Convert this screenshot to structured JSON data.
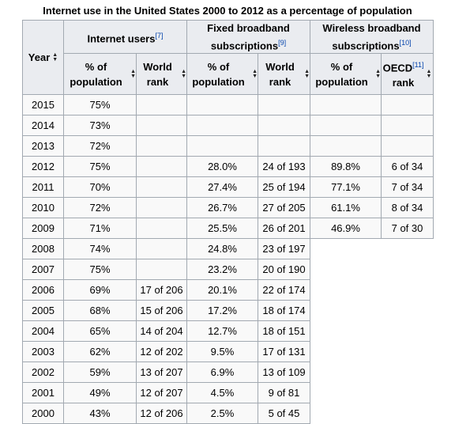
{
  "caption": "Internet use in the United States 2000 to 2012 as a percentage of population",
  "headers": {
    "year": "Year",
    "internet_users": "Internet users",
    "internet_users_ref": "[7]",
    "fixed_broadband": "Fixed broadband subscriptions",
    "fixed_broadband_ref": "[9]",
    "wireless_broadband": "Wireless broadband subscriptions",
    "wireless_broadband_ref": "[10]",
    "pct_population": "% of population",
    "world_rank": "World rank",
    "oecd_rank_prefix": "OECD",
    "oecd_ref": "[11]",
    "rank": "rank"
  },
  "rows": [
    {
      "year": "2015",
      "iu_pct": "75%",
      "iu_rank": "",
      "fb_pct": "",
      "fb_rank": "",
      "wb_pct": "",
      "wb_rank": ""
    },
    {
      "year": "2014",
      "iu_pct": "73%",
      "iu_rank": "",
      "fb_pct": "",
      "fb_rank": "",
      "wb_pct": "",
      "wb_rank": ""
    },
    {
      "year": "2013",
      "iu_pct": "72%",
      "iu_rank": "",
      "fb_pct": "",
      "fb_rank": "",
      "wb_pct": "",
      "wb_rank": ""
    },
    {
      "year": "2012",
      "iu_pct": "75%",
      "iu_rank": "",
      "fb_pct": "28.0%",
      "fb_rank": "24 of 193",
      "wb_pct": "89.8%",
      "wb_rank": "6 of 34"
    },
    {
      "year": "2011",
      "iu_pct": "70%",
      "iu_rank": "",
      "fb_pct": "27.4%",
      "fb_rank": "25 of 194",
      "wb_pct": "77.1%",
      "wb_rank": "7 of 34"
    },
    {
      "year": "2010",
      "iu_pct": "72%",
      "iu_rank": "",
      "fb_pct": "26.7%",
      "fb_rank": "27 of 205",
      "wb_pct": "61.1%",
      "wb_rank": "8 of 34"
    },
    {
      "year": "2009",
      "iu_pct": "71%",
      "iu_rank": "",
      "fb_pct": "25.5%",
      "fb_rank": "26 of 201",
      "wb_pct": "46.9%",
      "wb_rank": "7 of 30"
    },
    {
      "year": "2008",
      "iu_pct": "74%",
      "iu_rank": "",
      "fb_pct": "24.8%",
      "fb_rank": "23 of 197",
      "wb_pct": null,
      "wb_rank": null
    },
    {
      "year": "2007",
      "iu_pct": "75%",
      "iu_rank": "",
      "fb_pct": "23.2%",
      "fb_rank": "20 of 190",
      "wb_pct": null,
      "wb_rank": null
    },
    {
      "year": "2006",
      "iu_pct": "69%",
      "iu_rank": "17 of 206",
      "fb_pct": "20.1%",
      "fb_rank": "22 of 174",
      "wb_pct": null,
      "wb_rank": null
    },
    {
      "year": "2005",
      "iu_pct": "68%",
      "iu_rank": "15 of 206",
      "fb_pct": "17.2%",
      "fb_rank": "18 of 174",
      "wb_pct": null,
      "wb_rank": null
    },
    {
      "year": "2004",
      "iu_pct": "65%",
      "iu_rank": "14 of 204",
      "fb_pct": "12.7%",
      "fb_rank": "18 of 151",
      "wb_pct": null,
      "wb_rank": null
    },
    {
      "year": "2003",
      "iu_pct": "62%",
      "iu_rank": "12 of 202",
      "fb_pct": "9.5%",
      "fb_rank": "17 of 131",
      "wb_pct": null,
      "wb_rank": null
    },
    {
      "year": "2002",
      "iu_pct": "59%",
      "iu_rank": "13 of 207",
      "fb_pct": "6.9%",
      "fb_rank": "13 of 109",
      "wb_pct": null,
      "wb_rank": null
    },
    {
      "year": "2001",
      "iu_pct": "49%",
      "iu_rank": "12 of 207",
      "fb_pct": "4.5%",
      "fb_rank": "9 of 81",
      "wb_pct": null,
      "wb_rank": null
    },
    {
      "year": "2000",
      "iu_pct": "43%",
      "iu_rank": "12 of 206",
      "fb_pct": "2.5%",
      "fb_rank": "5 of 45",
      "wb_pct": null,
      "wb_rank": null
    }
  ],
  "icons": {
    "sort": "sort-updown-icon"
  }
}
